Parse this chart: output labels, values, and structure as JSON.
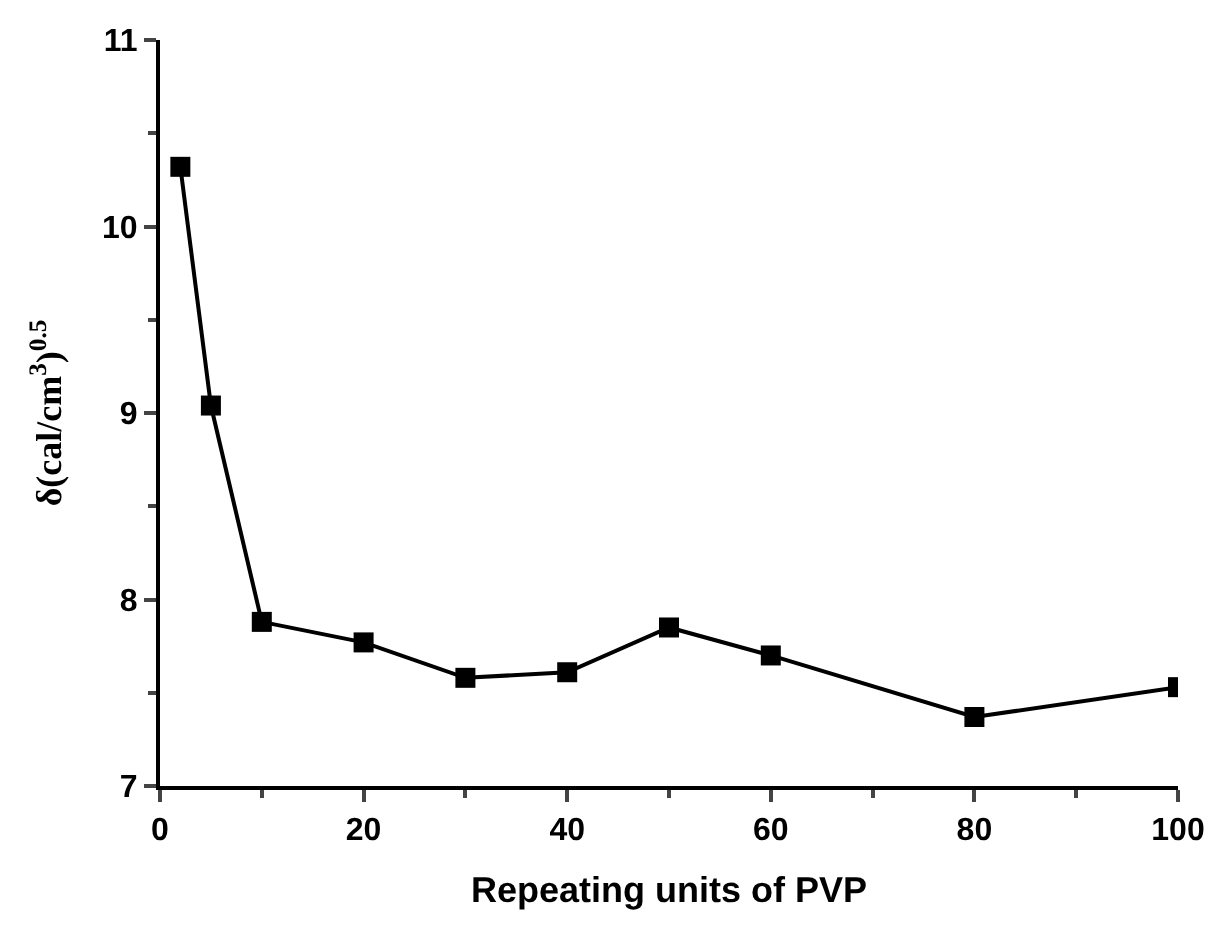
{
  "chart_data": {
    "type": "line",
    "xlabel": "Repeating units of PVP",
    "ylabel": "δ(cal/cm$^{3}$)$^{0.5}$",
    "x": [
      2,
      5,
      10,
      20,
      30,
      40,
      50,
      60,
      80,
      100
    ],
    "series": [
      {
        "color": "#000000",
        "values": [
          10.32,
          9.04,
          7.88,
          7.77,
          7.58,
          7.61,
          7.85,
          7.7,
          7.37,
          7.53
        ]
      }
    ],
    "xlim": [
      0,
      100
    ],
    "xticks": [
      0,
      20,
      40,
      60,
      80,
      100
    ],
    "ylim": [
      7,
      11
    ],
    "yticks": [
      7,
      8,
      9,
      10,
      11
    ],
    "marker": "square",
    "line_style": "solid"
  }
}
